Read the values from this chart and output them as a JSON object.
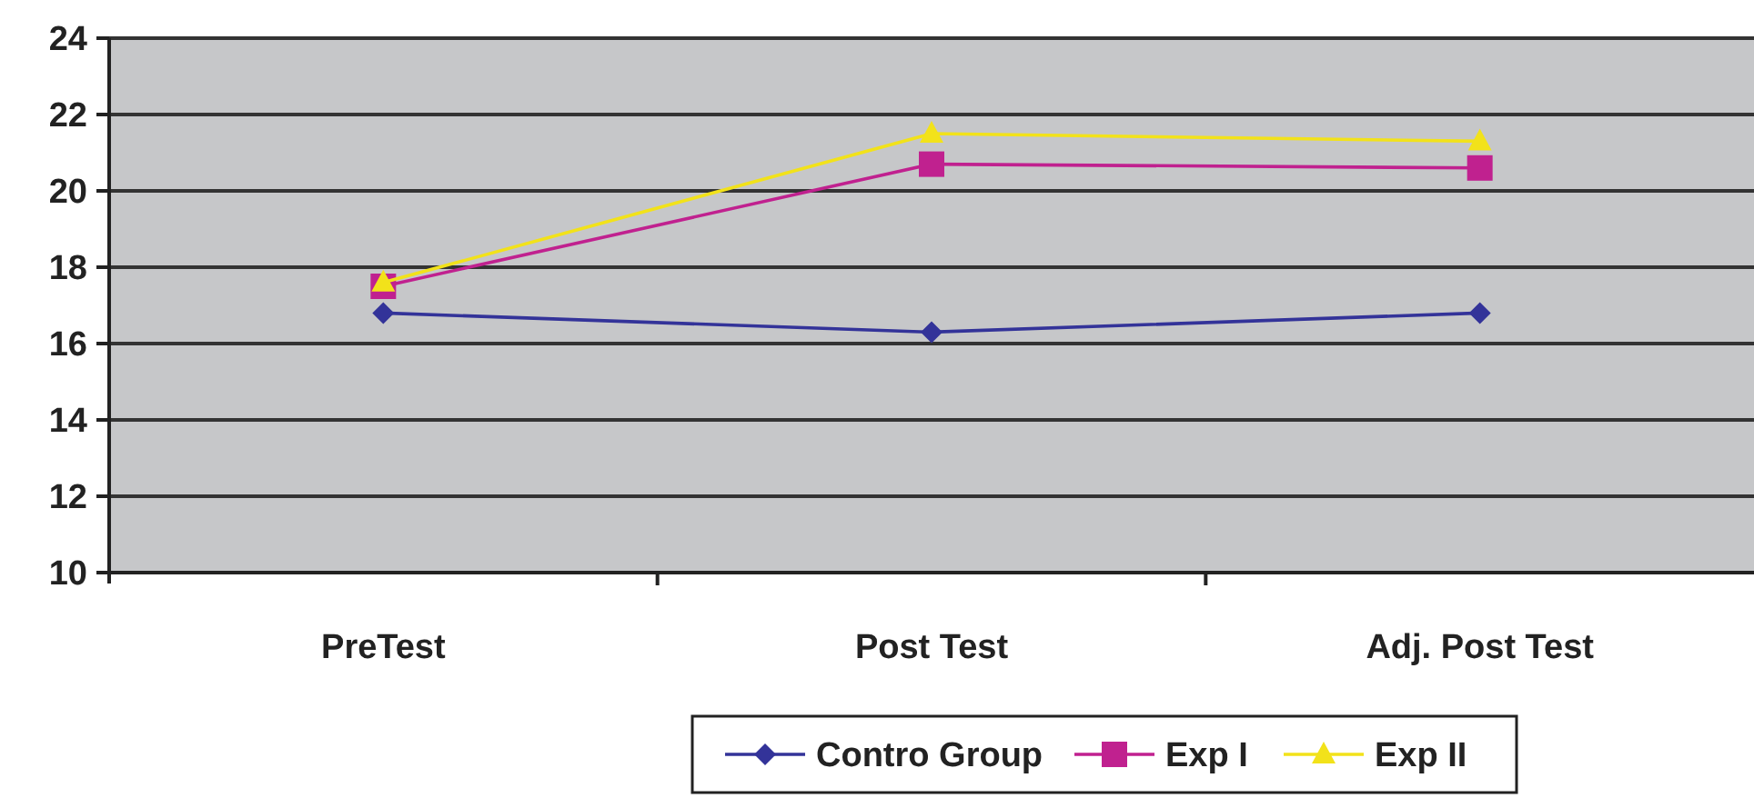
{
  "chart_data": {
    "type": "line",
    "categories": [
      "PreTest",
      "Post Test",
      "Adj. Post Test"
    ],
    "series": [
      {
        "name": "Contro Group",
        "color": "#333399",
        "marker": "diamond",
        "values": [
          16.8,
          16.3,
          16.8
        ]
      },
      {
        "name": "Exp I",
        "color": "#c0218f",
        "marker": "square",
        "values": [
          17.5,
          20.7,
          20.6
        ]
      },
      {
        "name": "Exp II",
        "color": "#f2e21a",
        "marker": "triangle",
        "values": [
          17.6,
          21.5,
          21.3
        ]
      }
    ],
    "ylim": [
      10,
      24
    ],
    "yticks": [
      10,
      12,
      14,
      16,
      18,
      20,
      22,
      24
    ],
    "grid": "y",
    "legend": "bottom"
  }
}
